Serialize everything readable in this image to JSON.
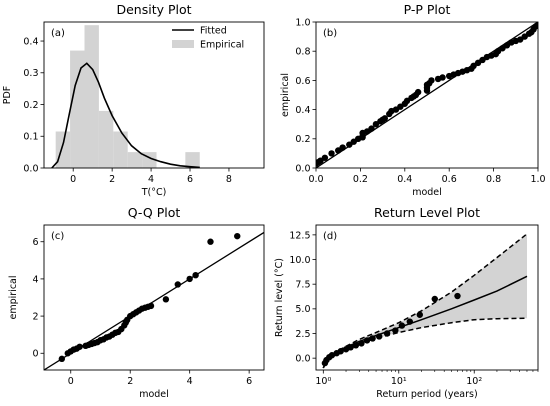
{
  "chart_data": [
    {
      "type": "bar",
      "title": "Density Plot",
      "panel_label": "(a)",
      "xlabel": "T(°C)",
      "ylabel": "PDF",
      "xlim": [
        -1.5,
        9.8
      ],
      "ylim": [
        0,
        0.46
      ],
      "xticks": [
        0,
        2,
        4,
        6,
        8
      ],
      "yticks": [
        0.0,
        0.1,
        0.2,
        0.3,
        0.4
      ],
      "ytick_labels": [
        "0.0",
        "0.1",
        "0.2",
        "0.3",
        "0.4"
      ],
      "legend": {
        "position": "top-right",
        "entries": [
          {
            "name": "Fitted",
            "kind": "line",
            "color": "#000000"
          },
          {
            "name": "Empirical",
            "kind": "patch",
            "color": "#d3d3d3"
          }
        ]
      },
      "histogram": {
        "name": "Empirical",
        "bin_width": 0.74,
        "bin_starts": [
          -0.9,
          -0.16,
          0.58,
          1.32,
          2.06,
          2.8,
          3.54,
          4.28,
          5.02,
          5.76
        ],
        "densities": [
          0.115,
          0.37,
          0.45,
          0.18,
          0.115,
          0.05,
          0.05,
          0.0,
          0.0,
          0.05
        ]
      },
      "fitted_curve": {
        "name": "Fitted",
        "x": [
          -1.1,
          -0.8,
          -0.5,
          -0.2,
          0.1,
          0.4,
          0.7,
          1.0,
          1.3,
          1.6,
          2.0,
          2.5,
          3.0,
          3.5,
          4.0,
          4.5,
          5.0,
          5.5,
          6.0,
          6.5
        ],
        "y": [
          0.0,
          0.02,
          0.08,
          0.17,
          0.26,
          0.315,
          0.33,
          0.31,
          0.27,
          0.22,
          0.165,
          0.11,
          0.07,
          0.045,
          0.03,
          0.02,
          0.012,
          0.007,
          0.004,
          0.002
        ]
      }
    },
    {
      "type": "scatter",
      "title": "P-P Plot",
      "panel_label": "(b)",
      "xlabel": "model",
      "ylabel": "empirical",
      "xlim": [
        0,
        1
      ],
      "ylim": [
        0,
        1
      ],
      "xticks": [
        0.0,
        0.2,
        0.4,
        0.6,
        0.8,
        1.0
      ],
      "xtick_labels": [
        "0.0",
        "0.2",
        "0.4",
        "0.6",
        "0.8",
        "1.0"
      ],
      "yticks": [
        0.0,
        0.2,
        0.4,
        0.6,
        0.8,
        1.0
      ],
      "ytick_labels": [
        "0.0",
        "0.2",
        "0.4",
        "0.6",
        "0.8",
        "1.0"
      ],
      "reference_line": [
        [
          0,
          0
        ],
        [
          1,
          1
        ]
      ],
      "points": {
        "x": [
          0.0,
          0.01,
          0.02,
          0.04,
          0.07,
          0.1,
          0.12,
          0.15,
          0.17,
          0.19,
          0.21,
          0.21,
          0.21,
          0.23,
          0.25,
          0.27,
          0.29,
          0.3,
          0.31,
          0.33,
          0.34,
          0.36,
          0.38,
          0.4,
          0.41,
          0.43,
          0.44,
          0.45,
          0.46,
          0.5,
          0.5,
          0.5,
          0.51,
          0.52,
          0.55,
          0.57,
          0.6,
          0.62,
          0.64,
          0.66,
          0.68,
          0.7,
          0.71,
          0.73,
          0.75,
          0.77,
          0.79,
          0.81,
          0.82,
          0.84,
          0.86,
          0.88,
          0.9,
          0.92,
          0.94,
          0.96,
          0.97,
          0.98,
          0.99,
          1.0
        ],
        "y": [
          0.03,
          0.04,
          0.05,
          0.07,
          0.1,
          0.12,
          0.14,
          0.16,
          0.18,
          0.2,
          0.21,
          0.22,
          0.24,
          0.25,
          0.27,
          0.3,
          0.32,
          0.33,
          0.34,
          0.37,
          0.39,
          0.4,
          0.42,
          0.44,
          0.46,
          0.48,
          0.49,
          0.5,
          0.52,
          0.53,
          0.55,
          0.57,
          0.58,
          0.6,
          0.61,
          0.62,
          0.63,
          0.64,
          0.65,
          0.66,
          0.67,
          0.68,
          0.7,
          0.72,
          0.74,
          0.76,
          0.77,
          0.78,
          0.8,
          0.82,
          0.84,
          0.86,
          0.87,
          0.88,
          0.9,
          0.92,
          0.93,
          0.95,
          0.97,
          0.98
        ]
      }
    },
    {
      "type": "scatter",
      "title": "Q-Q Plot",
      "panel_label": "(c)",
      "xlabel": "model",
      "ylabel": "empirical",
      "xlim": [
        -0.9,
        6.5
      ],
      "ylim": [
        -0.9,
        6.9
      ],
      "xticks": [
        0,
        2,
        4,
        6
      ],
      "yticks": [
        0,
        2,
        4,
        6
      ],
      "reference_line": [
        [
          -0.9,
          -0.9
        ],
        [
          6.5,
          6.5
        ]
      ],
      "points": {
        "x": [
          -0.3,
          -0.1,
          0.0,
          0.1,
          0.2,
          0.3,
          0.5,
          0.6,
          0.7,
          0.8,
          0.9,
          1.0,
          1.1,
          1.2,
          1.3,
          1.4,
          1.5,
          1.6,
          1.7,
          1.8,
          1.85,
          1.9,
          2.0,
          2.1,
          2.2,
          2.3,
          2.4,
          2.5,
          2.6,
          2.7,
          3.2,
          3.6,
          4.0,
          4.2,
          4.7,
          5.6
        ],
        "y": [
          -0.3,
          0.0,
          0.1,
          0.2,
          0.25,
          0.35,
          0.4,
          0.45,
          0.5,
          0.55,
          0.6,
          0.7,
          0.75,
          0.85,
          0.9,
          1.0,
          1.1,
          1.15,
          1.3,
          1.5,
          1.65,
          1.8,
          2.0,
          2.1,
          2.2,
          2.3,
          2.4,
          2.45,
          2.5,
          2.55,
          2.9,
          3.7,
          4.0,
          4.2,
          6.0,
          6.3
        ]
      }
    },
    {
      "type": "line",
      "title": "Return Level Plot",
      "panel_label": "(d)",
      "xlabel": "Return period (years)",
      "ylabel": "Return level (°C)",
      "xscale": "log",
      "xlim": [
        0.8,
        700
      ],
      "ylim": [
        -1.2,
        13.5
      ],
      "xticks": [
        1,
        10,
        100
      ],
      "xtick_labels": [
        "10⁰",
        "10¹",
        "10²"
      ],
      "yticks": [
        0.0,
        2.5,
        5.0,
        7.5,
        10.0,
        12.5
      ],
      "ytick_labels": [
        "0.0",
        "2.5",
        "5.0",
        "7.5",
        "10.0",
        "12.5"
      ],
      "fitted": {
        "x": [
          1.0,
          1.1,
          1.3,
          1.6,
          2.0,
          3.0,
          5.0,
          10,
          20,
          50,
          100,
          200,
          500
        ],
        "y": [
          -1.0,
          -0.3,
          0.2,
          0.7,
          1.1,
          1.7,
          2.3,
          3.1,
          3.9,
          5.0,
          5.9,
          6.8,
          8.3
        ]
      },
      "ci_upper": {
        "x": [
          1.0,
          1.1,
          1.3,
          1.6,
          2.0,
          3.0,
          5.0,
          10,
          20,
          50,
          100,
          200,
          500
        ],
        "y": [
          -1.0,
          -0.3,
          0.3,
          0.8,
          1.2,
          1.9,
          2.6,
          3.6,
          4.8,
          6.7,
          8.4,
          10.2,
          12.6
        ]
      },
      "ci_lower": {
        "x": [
          1.0,
          1.1,
          1.3,
          1.6,
          2.0,
          3.0,
          5.0,
          10,
          20,
          50,
          100,
          200,
          500
        ],
        "y": [
          -1.0,
          -0.3,
          0.1,
          0.6,
          1.0,
          1.5,
          2.0,
          2.6,
          3.1,
          3.6,
          3.9,
          4.0,
          4.05
        ]
      },
      "points": {
        "x": [
          1.05,
          1.1,
          1.2,
          1.3,
          1.5,
          1.7,
          2.0,
          2.3,
          2.7,
          3.2,
          3.8,
          4.5,
          5.5,
          7.0,
          9.0,
          11,
          14,
          19,
          30,
          60
        ],
        "y": [
          -0.5,
          -0.2,
          0.1,
          0.3,
          0.5,
          0.7,
          0.9,
          1.1,
          1.3,
          1.5,
          1.8,
          2.0,
          2.2,
          2.5,
          2.8,
          3.3,
          3.7,
          4.4,
          6.0,
          6.3
        ]
      }
    }
  ]
}
